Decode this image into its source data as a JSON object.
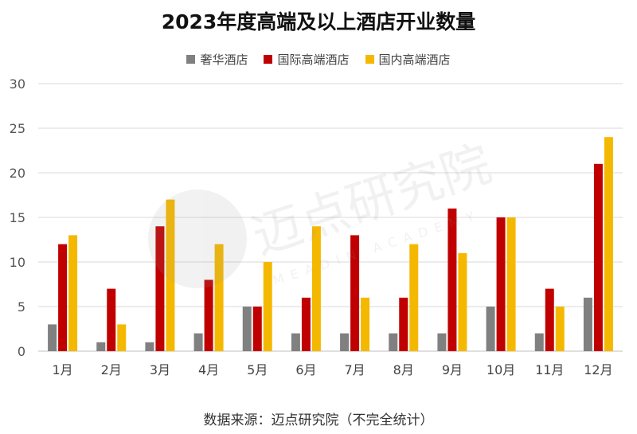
{
  "chart_data": {
    "type": "bar",
    "title": "2023年度高端及以上酒店开业数量",
    "categories": [
      "1月",
      "2月",
      "3月",
      "4月",
      "5月",
      "6月",
      "7月",
      "8月",
      "9月",
      "10月",
      "11月",
      "12月"
    ],
    "series": [
      {
        "name": "奢华酒店",
        "color": "#808080",
        "values": [
          3,
          1,
          1,
          2,
          5,
          2,
          2,
          2,
          2,
          5,
          2,
          6
        ]
      },
      {
        "name": "国际高端酒店",
        "color": "#c00000",
        "values": [
          12,
          7,
          14,
          8,
          5,
          6,
          13,
          6,
          16,
          15,
          7,
          21
        ]
      },
      {
        "name": "国内高端酒店",
        "color": "#f5b800",
        "values": [
          13,
          3,
          17,
          12,
          10,
          14,
          6,
          12,
          11,
          15,
          5,
          24
        ]
      }
    ],
    "ylim": [
      0,
      30
    ],
    "yticks": [
      0,
      5,
      10,
      15,
      20,
      25,
      30
    ],
    "grid": true,
    "legend": "top-center"
  },
  "source_note": "数据来源：迈点研究院（不完全统计）",
  "watermark": {
    "text": "迈点研究院",
    "subtext": "MEADIN ACADEMY"
  }
}
